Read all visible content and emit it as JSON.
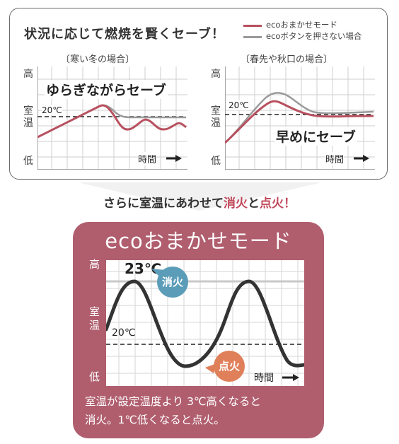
{
  "top": {
    "title": "状況に応じて燃焼を賢くセーブ！",
    "legend": [
      {
        "label": "ecoおまかせモード",
        "color": "#b8505e"
      },
      {
        "label": "ecoボタンを押さない場合",
        "color": "#9a9a9a"
      }
    ],
    "left_chart": {
      "caption": "〔寒い冬の場合〕",
      "overlay": "ゆらぎながらセーブ",
      "temp_label": "20℃",
      "y_high": "高",
      "y_room1": "室",
      "y_room2": "温",
      "y_low": "低",
      "time_label": "時間"
    },
    "right_chart": {
      "caption": "〔春先や秋口の場合〕",
      "overlay": "早めにセーブ",
      "temp_label": "20℃",
      "y_high": "高",
      "y_room1": "室",
      "y_room2": "温",
      "y_low": "低",
      "time_label": "時間"
    }
  },
  "middle": {
    "part1": "さらに室温にあわせて",
    "part2": "消火",
    "part3": "と",
    "part4": "点火",
    "part5": "！"
  },
  "eco": {
    "title": "ecoおまかせモード",
    "y_high": "高",
    "y_room1": "室",
    "y_room2": "温",
    "y_low": "低",
    "upper_temp": "23℃",
    "lower_temp": "20℃",
    "off_badge": "消火",
    "on_badge": "点火",
    "time_label": "時間",
    "desc_line1": "室温が設定温度より 3℃高くなると",
    "desc_line2": "消火。1℃低くなると点火。"
  },
  "colors": {
    "eco_line": "#b8505e",
    "normal_line": "#9a9a9a",
    "panel": "#b05e6e",
    "badge_blue": "#5b9cb8",
    "badge_orange": "#e0805a",
    "accent_text": "#c1475a"
  }
}
